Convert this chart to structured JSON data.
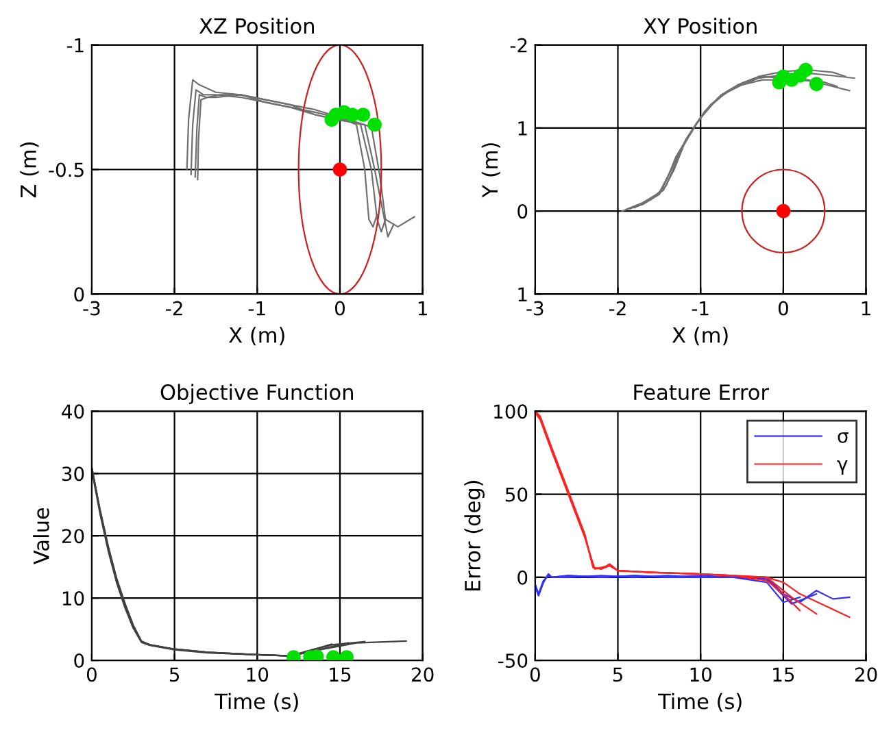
{
  "chart_data": [
    {
      "type": "line",
      "title": "XZ Position",
      "xlabel": "X (m)",
      "ylabel": "Z (m)",
      "xlim": [
        -3,
        1
      ],
      "xticks": [
        -3,
        -2,
        -1,
        0,
        1
      ],
      "ylim": [
        0,
        -1
      ],
      "yticks": [
        -1,
        -0.5,
        0
      ],
      "grid": true,
      "series": [
        {
          "color": "#707070",
          "x": [
            -1.85,
            -1.83,
            -1.78,
            -1.7,
            -1.5,
            -1.2,
            -0.9,
            -0.6,
            -0.3,
            -0.1,
            0.05,
            0.2,
            0.3,
            0.35,
            0.4,
            0.45
          ],
          "values": [
            -0.5,
            -0.7,
            -0.86,
            -0.84,
            -0.81,
            -0.8,
            -0.78,
            -0.76,
            -0.74,
            -0.72,
            -0.7,
            -0.68,
            -0.5,
            -0.3,
            -0.27,
            -0.32
          ]
        },
        {
          "color": "#707070",
          "x": [
            -1.8,
            -1.78,
            -1.74,
            -1.65,
            -1.5,
            -1.2,
            -0.9,
            -0.6,
            -0.3,
            -0.05,
            0.1,
            0.25,
            0.38,
            0.45,
            0.5,
            0.55
          ],
          "values": [
            -0.48,
            -0.68,
            -0.82,
            -0.8,
            -0.8,
            -0.79,
            -0.77,
            -0.75,
            -0.73,
            -0.71,
            -0.7,
            -0.68,
            -0.5,
            -0.3,
            -0.25,
            -0.3
          ]
        },
        {
          "color": "#707070",
          "x": [
            -1.75,
            -1.73,
            -1.7,
            -1.62,
            -1.5,
            -1.2,
            -0.9,
            -0.6,
            -0.3,
            -0.05,
            0.15,
            0.3,
            0.42,
            0.52,
            0.58,
            0.65
          ],
          "values": [
            -0.47,
            -0.66,
            -0.8,
            -0.79,
            -0.79,
            -0.8,
            -0.78,
            -0.76,
            -0.72,
            -0.7,
            -0.69,
            -0.68,
            -0.5,
            -0.33,
            -0.23,
            -0.28
          ]
        },
        {
          "color": "#707070",
          "x": [
            -1.72,
            -1.71,
            -1.68,
            -1.6,
            -1.45,
            -1.2,
            -0.9,
            -0.6,
            -0.3,
            0.0,
            0.2,
            0.38,
            0.48,
            0.55,
            0.7,
            0.9
          ],
          "values": [
            -0.46,
            -0.62,
            -0.78,
            -0.79,
            -0.8,
            -0.8,
            -0.77,
            -0.75,
            -0.72,
            -0.7,
            -0.69,
            -0.67,
            -0.48,
            -0.3,
            -0.27,
            -0.31
          ]
        },
        {
          "type": "scatter",
          "marker": "circle",
          "color": "#00e000",
          "x": [
            -0.1,
            -0.05,
            0.05,
            0.15,
            0.28,
            0.42
          ],
          "values": [
            -0.7,
            -0.72,
            -0.73,
            -0.72,
            -0.72,
            -0.68
          ]
        },
        {
          "type": "scatter",
          "marker": "circle",
          "color": "#ff0000",
          "x": [
            0
          ],
          "values": [
            -0.5
          ]
        }
      ]
    },
    {
      "type": "line",
      "title": "XY Position",
      "xlabel": "X (m)",
      "ylabel": "Y (m)",
      "xlim": [
        -3,
        1
      ],
      "xticks": [
        -3,
        -2,
        -1,
        0,
        1
      ],
      "ylim": [
        1,
        -2
      ],
      "yticks": [
        -2,
        {
          "value": -1,
          "label": "1"
        },
        0,
        1
      ],
      "grid": true,
      "series": [
        {
          "color": "#707070",
          "x": [
            -1.95,
            -1.7,
            -1.5,
            -1.4,
            -1.3,
            -1.15,
            -1.0,
            -0.8,
            -0.6,
            -0.3,
            0,
            0.3,
            0.6,
            0.86
          ],
          "values": [
            0,
            -0.08,
            -0.2,
            -0.4,
            -0.65,
            -0.9,
            -1.12,
            -1.35,
            -1.48,
            -1.6,
            -1.64,
            -1.66,
            -1.63,
            -1.6
          ]
        },
        {
          "color": "#707070",
          "x": [
            -1.9,
            -1.7,
            -1.5,
            -1.38,
            -1.25,
            -1.1,
            -0.95,
            -0.75,
            -0.55,
            -0.3,
            0,
            0.3,
            0.6,
            0.75
          ],
          "values": [
            -0.02,
            -0.1,
            -0.22,
            -0.45,
            -0.72,
            -0.98,
            -1.2,
            -1.4,
            -1.52,
            -1.62,
            -1.68,
            -1.7,
            -1.67,
            -1.62
          ]
        },
        {
          "color": "#707070",
          "x": [
            -1.85,
            -1.65,
            -1.45,
            -1.32,
            -1.2,
            -1.05,
            -0.9,
            -0.7,
            -0.5,
            -0.25,
            0.3,
            0.6,
            0.8
          ],
          "values": [
            -0.03,
            -0.12,
            -0.25,
            -0.5,
            -0.8,
            -1.05,
            -1.25,
            -1.42,
            -1.52,
            -1.58,
            -1.58,
            -1.5,
            -1.45
          ]
        },
        {
          "color": "#707070",
          "x": [
            -1.8,
            -1.6,
            -1.42,
            -1.3,
            -1.18,
            -1.02,
            -0.88,
            -0.68,
            -0.48,
            -0.25,
            0.5,
            0.65
          ],
          "values": [
            -0.04,
            -0.14,
            -0.3,
            -0.58,
            -0.86,
            -1.1,
            -1.28,
            -1.44,
            -1.55,
            -1.62,
            -1.55,
            -1.5
          ]
        },
        {
          "type": "scatter",
          "marker": "circle",
          "color": "#00e000",
          "x": [
            -0.05,
            0,
            0.1,
            0.2,
            0.27,
            0.4
          ],
          "values": [
            -1.55,
            -1.62,
            -1.58,
            -1.63,
            -1.7,
            -1.53
          ]
        },
        {
          "type": "scatter",
          "marker": "circle",
          "color": "#ff0000",
          "x": [
            0
          ],
          "values": [
            0
          ]
        }
      ]
    },
    {
      "type": "line",
      "title": "Objective Function",
      "xlabel": "Time (s)",
      "ylabel": "Value",
      "xlim": [
        0,
        20
      ],
      "xticks": [
        0,
        5,
        10,
        15,
        20
      ],
      "ylim": [
        0,
        40
      ],
      "yticks": [
        0,
        10,
        20,
        30,
        40
      ],
      "grid": true,
      "series": [
        {
          "color": "#404040",
          "x": [
            0,
            0.5,
            1,
            1.5,
            2,
            2.5,
            3,
            3.5,
            5,
            7,
            10,
            12,
            14,
            16,
            19
          ],
          "values": [
            31,
            24,
            18,
            13,
            9,
            5.5,
            3,
            2.5,
            1.8,
            1.3,
            0.9,
            0.7,
            1.8,
            2.8,
            3.1
          ]
        },
        {
          "color": "#404040",
          "x": [
            0,
            0.5,
            1,
            1.5,
            2,
            2.5,
            3,
            3.5,
            5,
            7,
            10,
            12,
            13,
            14.5,
            16.5
          ],
          "values": [
            30.5,
            23.5,
            17.5,
            12.5,
            8.5,
            5.2,
            2.9,
            2.4,
            1.7,
            1.2,
            0.9,
            0.7,
            1.5,
            2.5,
            3
          ]
        },
        {
          "color": "#404040",
          "x": [
            0,
            0.5,
            1,
            1.5,
            2,
            2.5,
            3,
            3.5,
            5,
            7,
            10,
            12,
            13.5,
            15.5
          ],
          "values": [
            30.8,
            24.2,
            18.3,
            13.2,
            9.2,
            5.7,
            3.1,
            2.5,
            1.8,
            1.3,
            0.9,
            0.7,
            1.6,
            2.8
          ]
        },
        {
          "color": "#404040",
          "x": [
            0,
            0.5,
            1,
            1.5,
            2,
            2.5,
            3,
            3.5,
            5,
            7,
            10,
            12,
            13,
            14.5
          ],
          "values": [
            31,
            24,
            18,
            13,
            9,
            5.5,
            3,
            2.5,
            1.8,
            1.3,
            0.9,
            0.7,
            1.4,
            2.6
          ]
        },
        {
          "type": "scatter",
          "marker": "circle",
          "color": "#00e000",
          "x": [
            12.2,
            13.2,
            13.6,
            14.6,
            15.4
          ],
          "values": [
            0.5,
            0.5,
            0.6,
            0.5,
            0.5
          ]
        }
      ]
    },
    {
      "type": "line",
      "title": "Feature Error",
      "xlabel": "Time (s)",
      "ylabel": "Error (deg)",
      "xlim": [
        0,
        20
      ],
      "xticks": [
        0,
        5,
        10,
        15,
        20
      ],
      "ylim": [
        -50,
        100
      ],
      "yticks": [
        -50,
        0,
        50,
        100
      ],
      "grid": true,
      "legend": "top right",
      "series": [
        {
          "name": "σ",
          "color": "#3030ff",
          "x": [
            0,
            0.2,
            0.5,
            0.8,
            1,
            2,
            4,
            6,
            8,
            10,
            12,
            14,
            15,
            16,
            17,
            18,
            19
          ],
          "values": [
            -5,
            -11,
            -3,
            2,
            0,
            1,
            0,
            1,
            0,
            1,
            0,
            0,
            -10,
            -15,
            -8,
            -13,
            -12
          ]
        },
        {
          "name": "γ",
          "color": "#ff2020",
          "x": [
            0,
            0.3,
            1,
            2,
            3,
            3.5,
            4,
            4.5,
            5,
            7,
            10,
            12,
            14,
            15,
            16,
            17.5,
            19
          ],
          "values": [
            100,
            97,
            78,
            52,
            26,
            6,
            5,
            8,
            4,
            3,
            2,
            1,
            0,
            -3,
            -10,
            -17,
            -24
          ]
        },
        {
          "color": "#3030ff",
          "x": [
            0,
            0.2,
            0.5,
            0.8,
            1,
            2,
            4,
            6,
            8,
            10,
            12,
            14,
            15,
            16
          ],
          "values": [
            -4,
            -10,
            -2,
            1,
            0,
            0,
            1,
            0,
            1,
            0,
            0,
            -3,
            -15,
            -12
          ]
        },
        {
          "color": "#3030ff",
          "x": [
            0,
            0.2,
            0.5,
            0.8,
            1,
            2,
            4,
            6,
            8,
            10,
            12,
            14,
            15.5,
            17
          ],
          "values": [
            -5,
            -11,
            -3,
            2,
            0,
            1,
            0,
            1,
            0,
            0,
            0,
            -1,
            -16,
            -10
          ]
        },
        {
          "color": "#ff2020",
          "x": [
            0,
            0.3,
            1,
            2,
            3,
            3.6,
            4,
            4.5,
            5,
            7,
            10,
            12,
            14,
            15,
            16
          ],
          "values": [
            99,
            95,
            76,
            50,
            24,
            5,
            6,
            7,
            4,
            3,
            2,
            1,
            -2,
            -10,
            -20
          ]
        },
        {
          "color": "#ff2020",
          "x": [
            0,
            0.3,
            1,
            2,
            3,
            3.5,
            4,
            4.5,
            5,
            7,
            10,
            12,
            14,
            15.5,
            17
          ],
          "values": [
            100,
            96,
            77,
            51,
            25,
            6,
            5,
            7,
            4,
            3,
            2,
            1,
            0,
            -12,
            -22
          ]
        }
      ]
    }
  ]
}
